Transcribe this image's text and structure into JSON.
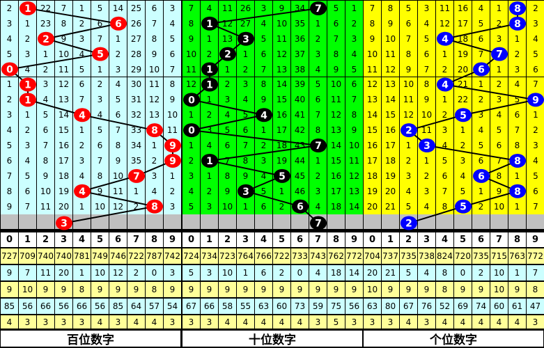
{
  "colors": {
    "panel_bg": [
      "#ccffff",
      "#00ff00",
      "#ffff00"
    ],
    "ball": [
      "#ff0000",
      "#000000",
      "#0000ff"
    ],
    "pred_row": "#c0c0c0",
    "stat_yellow": "#ffff99",
    "stat_cyan": "#ccffff"
  },
  "header_digits": [
    "0",
    "1",
    "2",
    "3",
    "4",
    "5",
    "6",
    "7",
    "8",
    "9"
  ],
  "panels": [
    {
      "title": "百位数字",
      "draws": [
        1,
        6,
        2,
        5,
        0,
        1,
        1,
        4,
        8,
        9,
        9,
        7,
        4,
        8
      ],
      "prediction": 3,
      "rows": [
        [
          2,
          1,
          22,
          7,
          1,
          5,
          14,
          25,
          6,
          3
        ],
        [
          3,
          1,
          23,
          8,
          2,
          6,
          6,
          26,
          7,
          4
        ],
        [
          4,
          2,
          2,
          9,
          3,
          7,
          1,
          27,
          8,
          5
        ],
        [
          5,
          3,
          1,
          10,
          4,
          5,
          2,
          28,
          9,
          6
        ],
        [
          0,
          4,
          2,
          11,
          5,
          1,
          3,
          29,
          10,
          7
        ],
        [
          1,
          1,
          3,
          12,
          6,
          2,
          4,
          30,
          11,
          8
        ],
        [
          2,
          1,
          4,
          13,
          7,
          3,
          5,
          31,
          12,
          9
        ],
        [
          3,
          1,
          5,
          14,
          4,
          4,
          6,
          32,
          13,
          10
        ],
        [
          4,
          2,
          6,
          15,
          1,
          5,
          7,
          33,
          8,
          11
        ],
        [
          5,
          3,
          7,
          16,
          2,
          6,
          8,
          34,
          1,
          9
        ],
        [
          6,
          4,
          8,
          17,
          3,
          7,
          9,
          35,
          2,
          9
        ],
        [
          7,
          5,
          9,
          18,
          4,
          8,
          10,
          7,
          3,
          1
        ],
        [
          8,
          6,
          10,
          19,
          4,
          9,
          11,
          1,
          4,
          2
        ],
        [
          9,
          7,
          11,
          20,
          1,
          10,
          12,
          2,
          8,
          3
        ]
      ],
      "stats": [
        [
          727,
          709,
          740,
          740,
          781,
          749,
          746,
          722,
          787,
          742
        ],
        [
          9,
          7,
          11,
          20,
          1,
          10,
          12,
          2,
          0,
          3
        ],
        [
          9,
          10,
          9,
          9,
          8,
          9,
          9,
          9,
          8,
          9
        ],
        [
          85,
          56,
          66,
          56,
          66,
          56,
          85,
          64,
          57,
          54
        ],
        [
          4,
          3,
          3,
          3,
          3,
          4,
          3,
          4,
          4,
          3
        ]
      ]
    },
    {
      "title": "十位数字",
      "draws": [
        7,
        1,
        3,
        2,
        1,
        1,
        0,
        4,
        0,
        7,
        1,
        5,
        3,
        6
      ],
      "prediction": 7,
      "rows": [
        [
          7,
          4,
          11,
          26,
          3,
          9,
          34,
          7,
          5,
          1
        ],
        [
          8,
          1,
          12,
          27,
          4,
          10,
          35,
          1,
          6,
          2
        ],
        [
          9,
          1,
          13,
          3,
          5,
          11,
          36,
          2,
          7,
          3
        ],
        [
          10,
          2,
          2,
          1,
          6,
          12,
          37,
          3,
          8,
          4
        ],
        [
          11,
          1,
          1,
          2,
          7,
          13,
          38,
          4,
          9,
          5
        ],
        [
          12,
          1,
          2,
          3,
          8,
          14,
          39,
          5,
          10,
          6
        ],
        [
          0,
          1,
          3,
          4,
          9,
          15,
          40,
          6,
          11,
          7
        ],
        [
          1,
          2,
          4,
          5,
          4,
          16,
          41,
          7,
          12,
          8
        ],
        [
          0,
          3,
          5,
          6,
          1,
          17,
          42,
          8,
          13,
          9
        ],
        [
          1,
          4,
          6,
          7,
          2,
          18,
          43,
          7,
          14,
          10
        ],
        [
          2,
          1,
          7,
          8,
          3,
          19,
          44,
          1,
          15,
          11
        ],
        [
          3,
          1,
          8,
          9,
          4,
          5,
          45,
          2,
          16,
          12
        ],
        [
          4,
          2,
          9,
          3,
          5,
          1,
          46,
          3,
          17,
          13
        ],
        [
          5,
          3,
          10,
          1,
          6,
          2,
          6,
          4,
          18,
          14
        ]
      ],
      "stats": [
        [
          724,
          734,
          723,
          764,
          766,
          722,
          733,
          743,
          762,
          772
        ],
        [
          5,
          3,
          10,
          1,
          6,
          2,
          0,
          4,
          18,
          14
        ],
        [
          9,
          9,
          9,
          9,
          9,
          9,
          9,
          9,
          9,
          9
        ],
        [
          67,
          66,
          58,
          55,
          63,
          60,
          73,
          59,
          75,
          56
        ],
        [
          3,
          3,
          4,
          4,
          4,
          4,
          4,
          3,
          5,
          3
        ]
      ]
    },
    {
      "title": "个位数字",
      "draws": [
        8,
        8,
        4,
        7,
        6,
        4,
        9,
        5,
        2,
        3,
        8,
        6,
        8,
        5
      ],
      "prediction": 2,
      "rows": [
        [
          7,
          8,
          5,
          3,
          11,
          16,
          4,
          1,
          8,
          2
        ],
        [
          8,
          9,
          6,
          4,
          12,
          17,
          5,
          2,
          8,
          3
        ],
        [
          9,
          10,
          7,
          5,
          4,
          18,
          6,
          3,
          1,
          4
        ],
        [
          10,
          11,
          8,
          6,
          1,
          19,
          7,
          7,
          2,
          5
        ],
        [
          11,
          12,
          9,
          7,
          2,
          20,
          6,
          1,
          3,
          6
        ],
        [
          12,
          13,
          10,
          8,
          4,
          21,
          1,
          2,
          4,
          7
        ],
        [
          13,
          14,
          11,
          9,
          1,
          22,
          2,
          3,
          5,
          9
        ],
        [
          14,
          15,
          12,
          10,
          2,
          5,
          3,
          4,
          6,
          1
        ],
        [
          15,
          16,
          2,
          11,
          3,
          1,
          4,
          5,
          7,
          2
        ],
        [
          16,
          17,
          1,
          3,
          4,
          2,
          5,
          6,
          8,
          3
        ],
        [
          17,
          18,
          2,
          1,
          5,
          3,
          6,
          7,
          8,
          4
        ],
        [
          18,
          19,
          3,
          2,
          6,
          4,
          6,
          8,
          1,
          5
        ],
        [
          19,
          20,
          4,
          3,
          7,
          5,
          1,
          9,
          8,
          6
        ],
        [
          20,
          21,
          5,
          4,
          8,
          5,
          2,
          10,
          1,
          7
        ]
      ],
      "stats": [
        [
          704,
          737,
          735,
          738,
          824,
          720,
          735,
          715,
          763,
          772
        ],
        [
          20,
          21,
          5,
          4,
          8,
          0,
          2,
          10,
          1,
          7
        ],
        [
          10,
          9,
          9,
          9,
          8,
          9,
          9,
          10,
          9,
          8
        ],
        [
          63,
          80,
          67,
          76,
          52,
          69,
          74,
          60,
          61,
          47
        ],
        [
          3,
          3,
          4,
          3,
          4,
          4,
          4,
          4,
          4,
          3
        ]
      ]
    }
  ]
}
